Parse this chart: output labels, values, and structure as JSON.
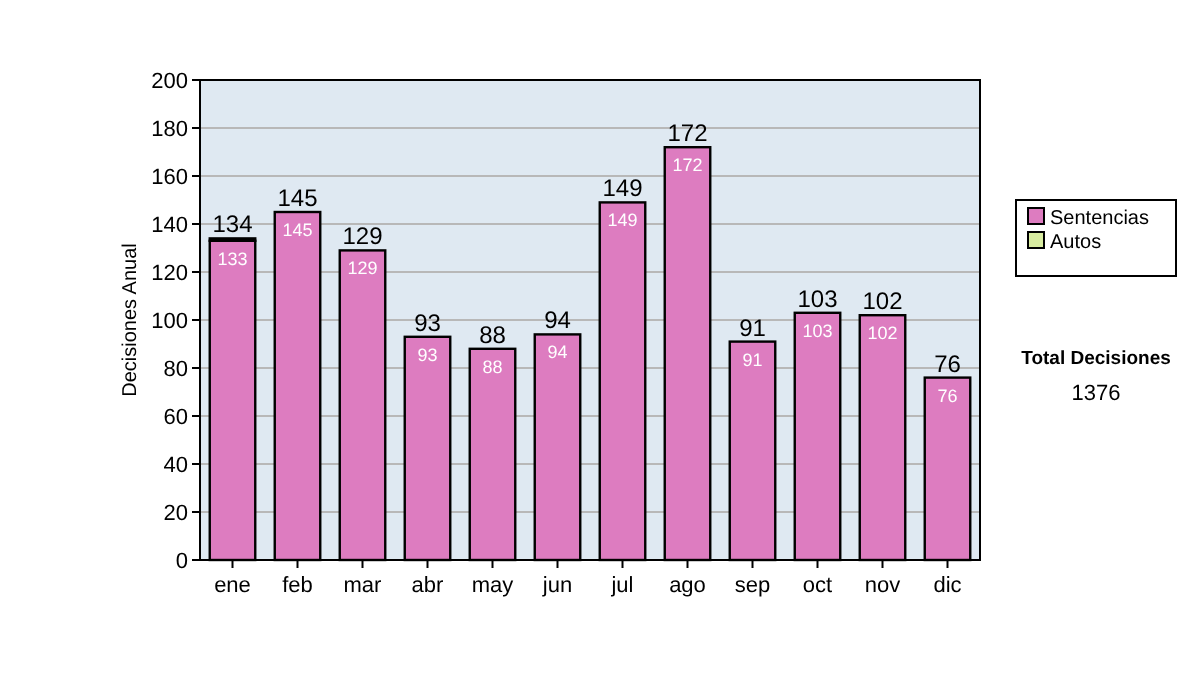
{
  "chart_data": {
    "type": "bar",
    "stacked": true,
    "ylabel": "Decisiones Anual",
    "categories": [
      "ene",
      "feb",
      "mar",
      "abr",
      "may",
      "jun",
      "jul",
      "ago",
      "sep",
      "oct",
      "nov",
      "dic"
    ],
    "series": [
      {
        "name": "Sentencias",
        "color": "#dd7cc0",
        "values": [
          133,
          145,
          129,
          93,
          88,
          94,
          149,
          172,
          91,
          103,
          102,
          76
        ],
        "value_labels": [
          "133",
          "145",
          "129",
          "93",
          "88",
          "94",
          "149",
          "172",
          "91",
          "103",
          "102",
          "76"
        ]
      },
      {
        "name": "Autos",
        "color": "#d8eca0",
        "values": [
          1,
          0,
          0,
          0,
          0,
          0,
          0,
          0,
          0,
          0,
          0,
          0
        ]
      }
    ],
    "totals": [
      "134",
      "145",
      "129",
      "93",
      "88",
      "94",
      "149",
      "172",
      "91",
      "103",
      "102",
      "76"
    ],
    "ylim": [
      0,
      200
    ],
    "yticks": [
      0,
      20,
      40,
      60,
      80,
      100,
      120,
      140,
      160,
      180,
      200
    ],
    "grid": "y",
    "legend": "right",
    "annotations": [
      "Total Decisiones",
      "1376"
    ]
  }
}
